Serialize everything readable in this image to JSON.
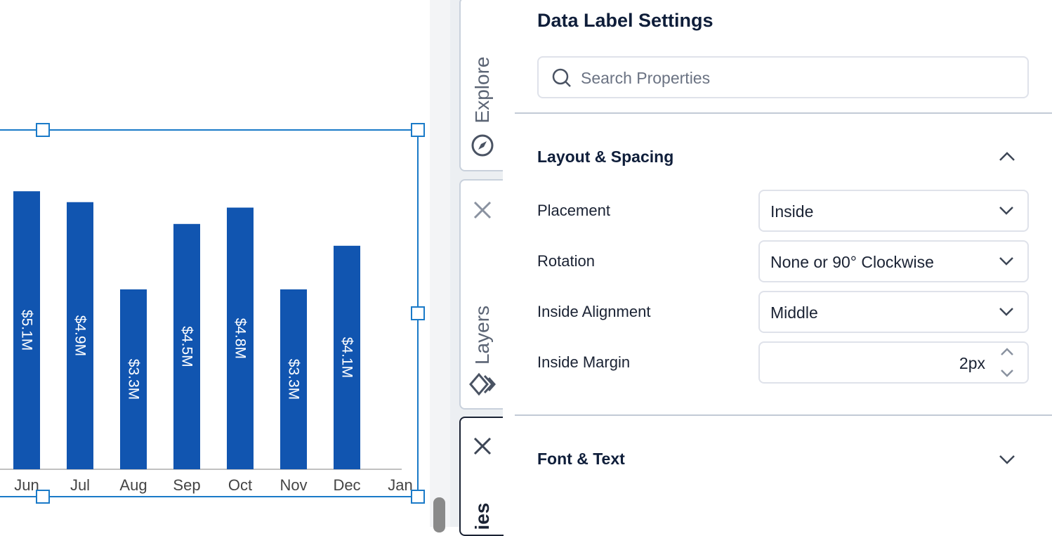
{
  "chart_data": {
    "type": "bar",
    "categories": [
      "Jun",
      "Jul",
      "Aug",
      "Sep",
      "Oct",
      "Nov",
      "Dec",
      "Jan"
    ],
    "values": [
      5.1,
      4.9,
      3.3,
      4.5,
      4.8,
      3.3,
      4.1,
      null
    ],
    "data_labels": [
      "$5.1M",
      "$4.9M",
      "$3.3M",
      "$4.5M",
      "$4.8M",
      "$3.3M",
      "$4.1M",
      ""
    ],
    "label_placement": "inside, rotated 90° clockwise",
    "bar_color": "#1155b0",
    "grid": false
  },
  "tabs": {
    "explore": "Explore",
    "layers": "Layers",
    "properties": "ies"
  },
  "panel": {
    "title": "Data Label Settings",
    "search_placeholder": "Search Properties",
    "section1": "Layout & Spacing",
    "rows": [
      {
        "label": "Placement",
        "value": "Inside"
      },
      {
        "label": "Rotation",
        "value": "None or 90° Clockwise"
      },
      {
        "label": "Inside Alignment",
        "value": "Middle"
      },
      {
        "label": "Inside Margin",
        "value": "2px"
      }
    ],
    "section2": "Font & Text"
  }
}
